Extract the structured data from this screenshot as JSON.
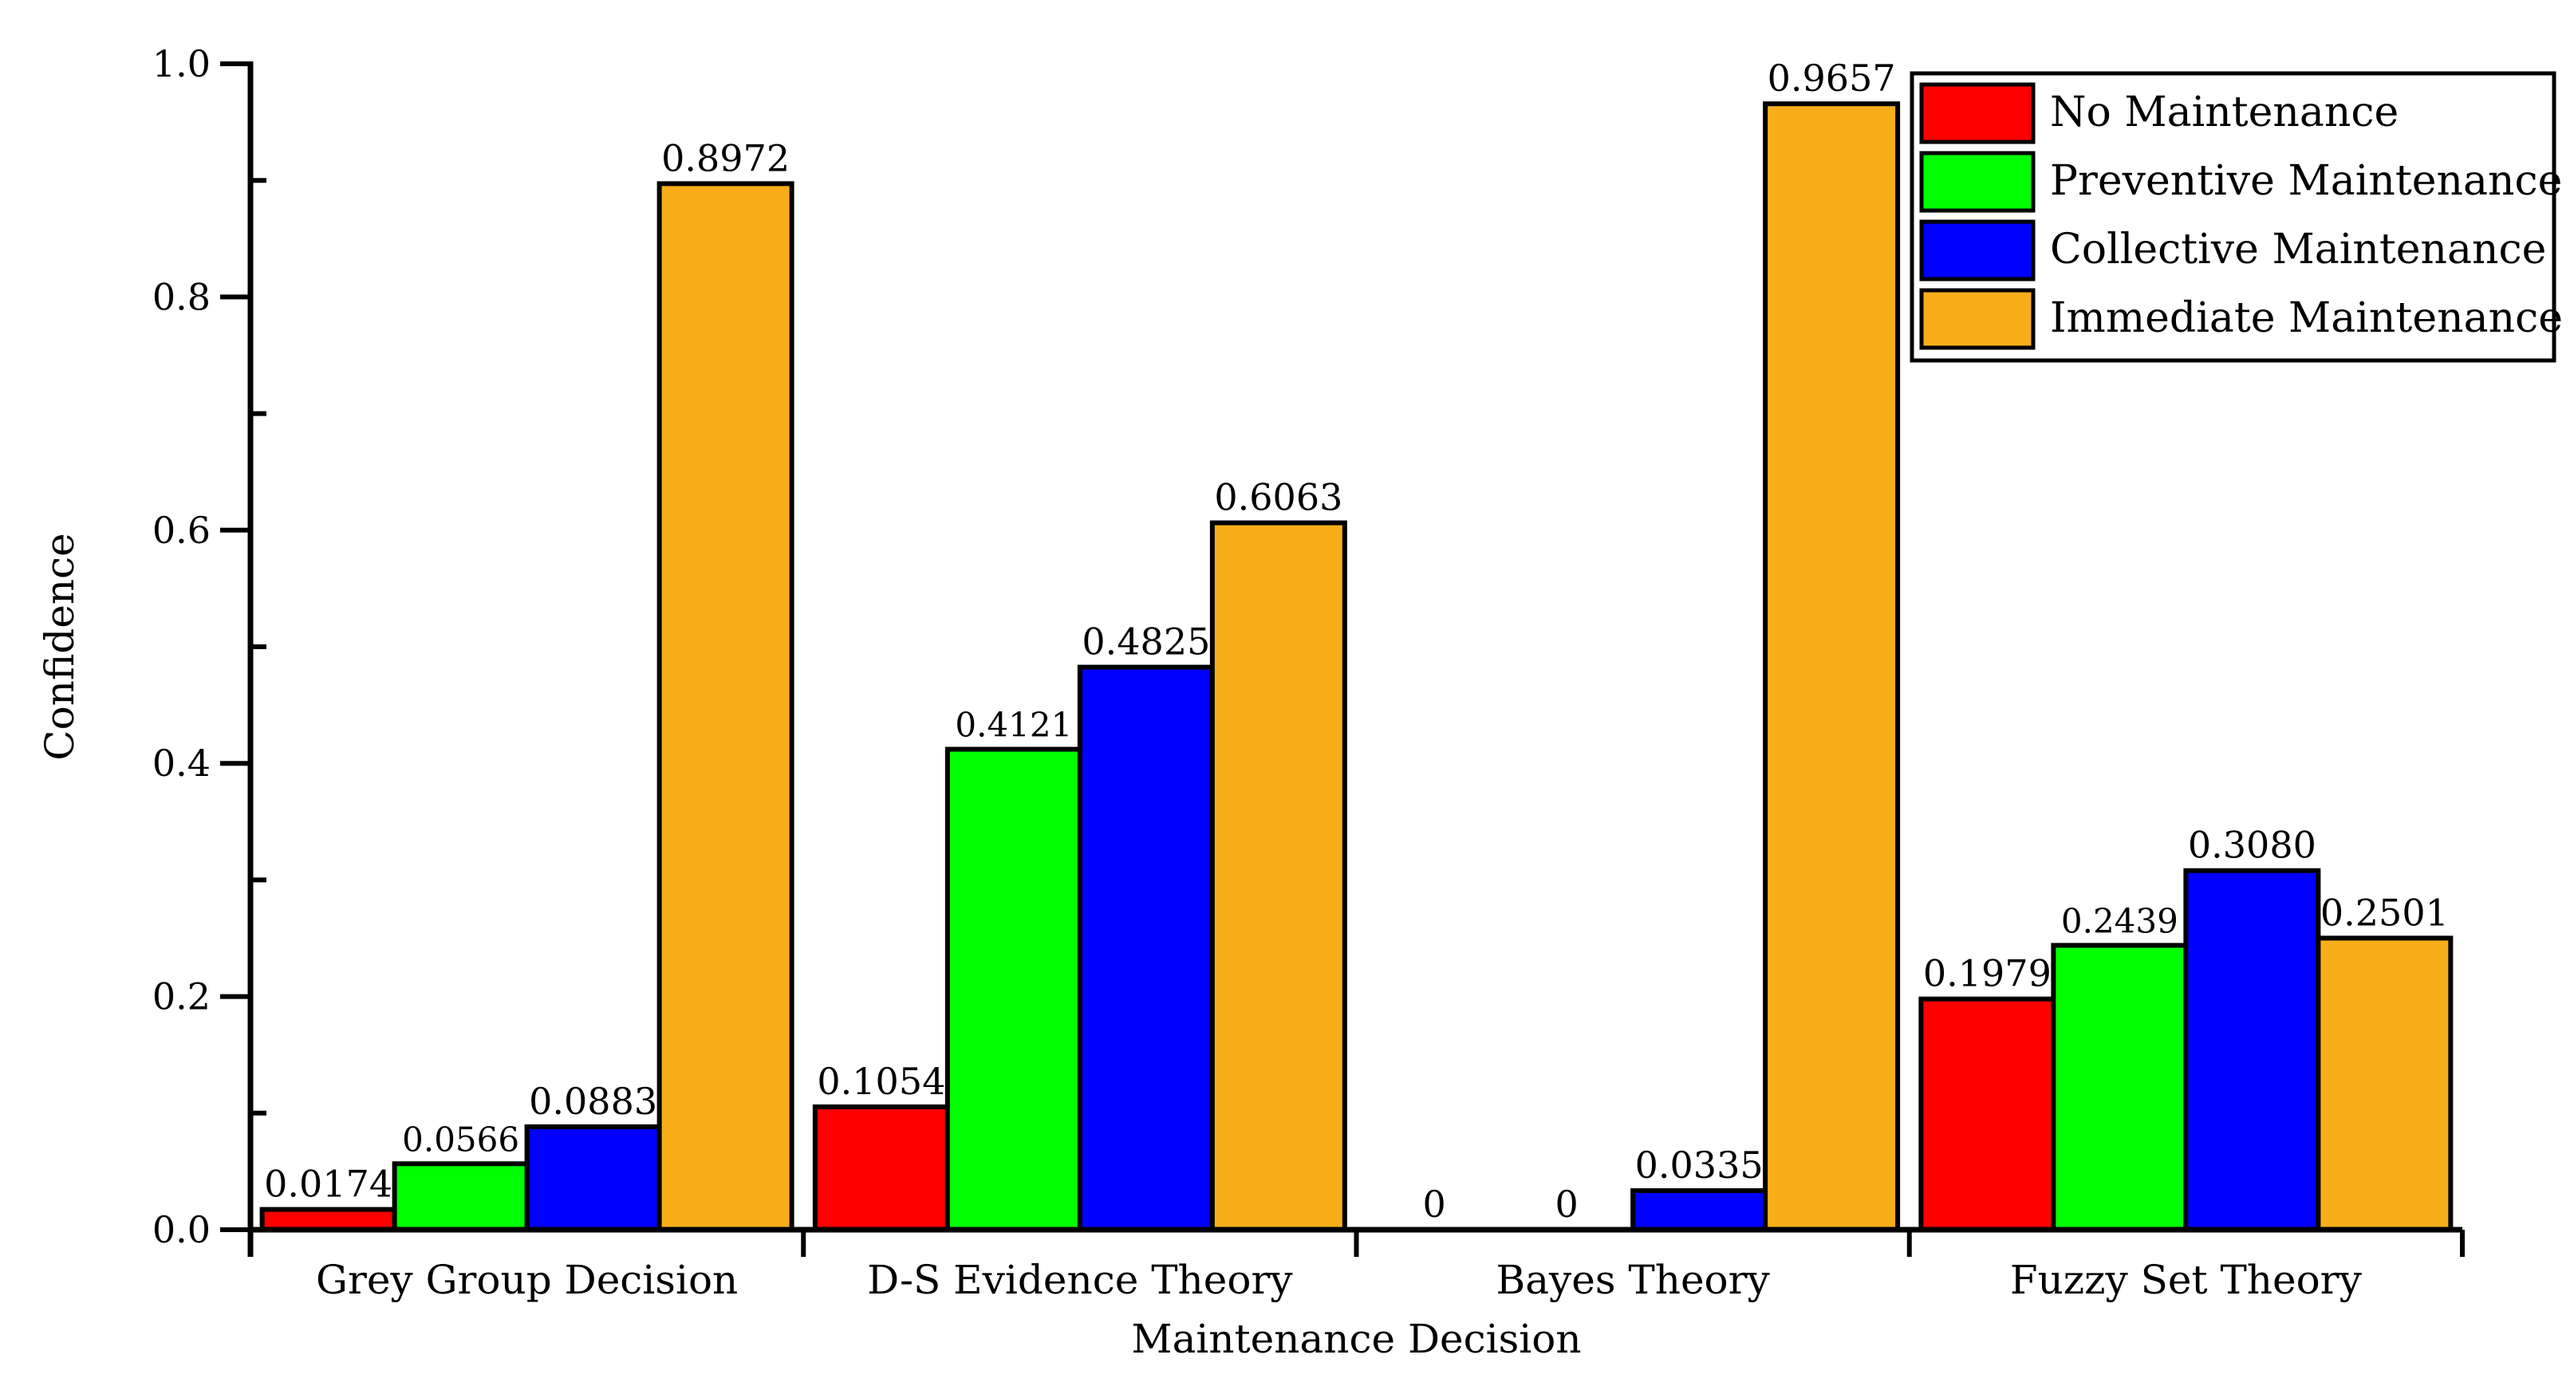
{
  "chart_data": {
    "type": "bar",
    "title": "",
    "xlabel": "Maintenance Decision",
    "ylabel": "Confidence",
    "ylim": [
      0,
      1.0
    ],
    "yticks": [
      "0.0",
      "0.2",
      "0.4",
      "0.6",
      "0.8",
      "1.0"
    ],
    "ytick_values": [
      0,
      0.2,
      0.4,
      0.6,
      0.8,
      1.0
    ],
    "legend_position": "top-right",
    "grid": false,
    "categories": [
      "Grey Group Decision",
      "D-S Evidence Theory",
      "Bayes Theory",
      "Fuzzy Set Theory"
    ],
    "series": [
      {
        "name": "No Maintenance",
        "color": "#ff0000",
        "values": [
          0.0174,
          0.1054,
          0,
          0.1979
        ],
        "labels": [
          "0.0174",
          "0.1054",
          "0",
          "0.1979"
        ]
      },
      {
        "name": "Preventive Maintenance",
        "color": "#00ff00",
        "values": [
          0.0566,
          0.4121,
          0,
          0.2439
        ],
        "labels": [
          "0.0566",
          "0.4121",
          "0",
          "0.2439"
        ]
      },
      {
        "name": "Collective Maintenance",
        "color": "#0000ff",
        "values": [
          0.0883,
          0.4825,
          0.0335,
          0.308
        ],
        "labels": [
          "0.0883",
          "0.4825",
          "0.0335",
          "0.3080"
        ]
      },
      {
        "name": "Immediate Maintenance",
        "color": "#f7ae19",
        "values": [
          0.8972,
          0.6063,
          0.9657,
          0.2501
        ],
        "labels": [
          "0.8972",
          "0.6063",
          "0.9657",
          "0.2501"
        ]
      }
    ]
  }
}
